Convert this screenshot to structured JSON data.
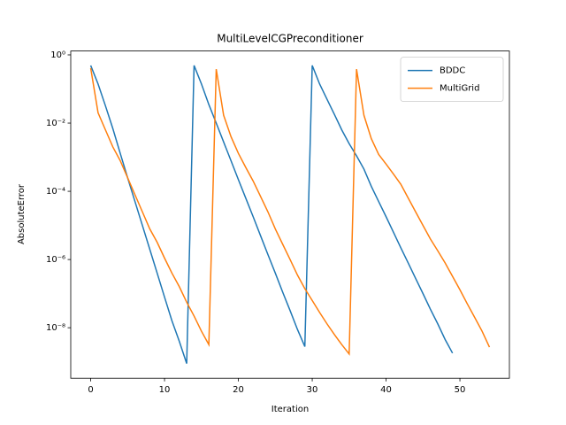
{
  "chart_data": {
    "type": "line",
    "title": "MultiLevelCGPreconditioner",
    "xlabel": "Iteration",
    "ylabel": "AbsoluteError",
    "log_y": true,
    "legend": "upper right",
    "xlim": [
      -2.7,
      56.7
    ],
    "xticks": [
      0,
      10,
      20,
      30,
      40,
      50
    ],
    "ylim": [
      3.3e-10,
      1.3
    ],
    "yticks": [
      {
        "value": 1e-08,
        "label": "10⁻⁸"
      },
      {
        "value": 1e-06,
        "label": "10⁻⁶"
      },
      {
        "value": 0.0001,
        "label": "10⁻⁴"
      },
      {
        "value": 0.01,
        "label": "10⁻²"
      },
      {
        "value": 1,
        "label": "10⁰"
      }
    ],
    "series": [
      {
        "name": "BDDC",
        "color": "#1f77b4",
        "x": [
          0,
          1,
          2,
          3,
          4,
          5,
          6,
          7,
          8,
          9,
          10,
          11,
          12,
          13,
          14,
          15,
          16,
          17,
          18,
          19,
          20,
          21,
          22,
          23,
          24,
          25,
          26,
          27,
          28,
          29,
          30,
          31,
          32,
          33,
          34,
          35,
          36,
          37,
          38,
          39,
          40,
          41,
          42,
          43,
          44,
          45,
          46,
          47,
          48,
          49
        ],
        "values": [
          0.49,
          0.14,
          0.032,
          0.0069,
          0.0013,
          0.00025,
          5e-05,
          1e-05,
          2e-06,
          4e-07,
          7.9e-08,
          1.6e-08,
          4e-09,
          8.9e-10,
          0.49,
          0.14,
          0.035,
          0.01,
          0.0028,
          0.00079,
          0.00022,
          6.3e-05,
          1.8e-05,
          5e-06,
          1.4e-06,
          4e-07,
          1.1e-07,
          3.2e-08,
          8.9e-09,
          2.8e-09,
          0.49,
          0.14,
          0.05,
          0.018,
          0.0063,
          0.0025,
          0.0011,
          0.00045,
          0.00014,
          5e-05,
          1.8e-05,
          6.3e-06,
          2.2e-06,
          7.9e-07,
          2.8e-07,
          1e-07,
          3.5e-08,
          1.3e-08,
          4.5e-09,
          1.8e-09
        ]
      },
      {
        "name": "MultiGrid",
        "color": "#ff7f0e",
        "x": [
          0,
          1,
          2,
          3,
          4,
          5,
          6,
          7,
          8,
          9,
          10,
          11,
          12,
          13,
          14,
          15,
          16,
          17,
          18,
          19,
          20,
          21,
          22,
          23,
          24,
          25,
          26,
          27,
          28,
          29,
          30,
          31,
          32,
          33,
          34,
          35,
          36,
          37,
          38,
          39,
          40,
          41,
          42,
          43,
          44,
          45,
          46,
          47,
          48,
          49,
          50,
          51,
          52,
          53,
          54
        ],
        "values": [
          0.41,
          0.02,
          0.0063,
          0.002,
          0.00079,
          0.00025,
          7.9e-05,
          2.5e-05,
          7.9e-06,
          3.2e-06,
          1.1e-06,
          4e-07,
          1.6e-07,
          5.6e-08,
          2.2e-08,
          7.9e-09,
          3.2e-09,
          0.38,
          0.017,
          0.004,
          0.0013,
          0.0005,
          0.0002,
          7.1e-05,
          2.5e-05,
          7.9e-06,
          2.8e-06,
          1e-06,
          3.5e-07,
          1.4e-07,
          6.3e-08,
          2.8e-08,
          1.3e-08,
          6.3e-09,
          3.2e-09,
          1.7e-09,
          0.38,
          0.017,
          0.0035,
          0.0012,
          0.00063,
          0.00032,
          0.00016,
          6.3e-05,
          2.5e-05,
          1e-05,
          4e-06,
          1.8e-06,
          7.9e-07,
          3.2e-07,
          1.3e-07,
          5e-08,
          2e-08,
          7.9e-09,
          2.7e-09
        ]
      }
    ]
  }
}
